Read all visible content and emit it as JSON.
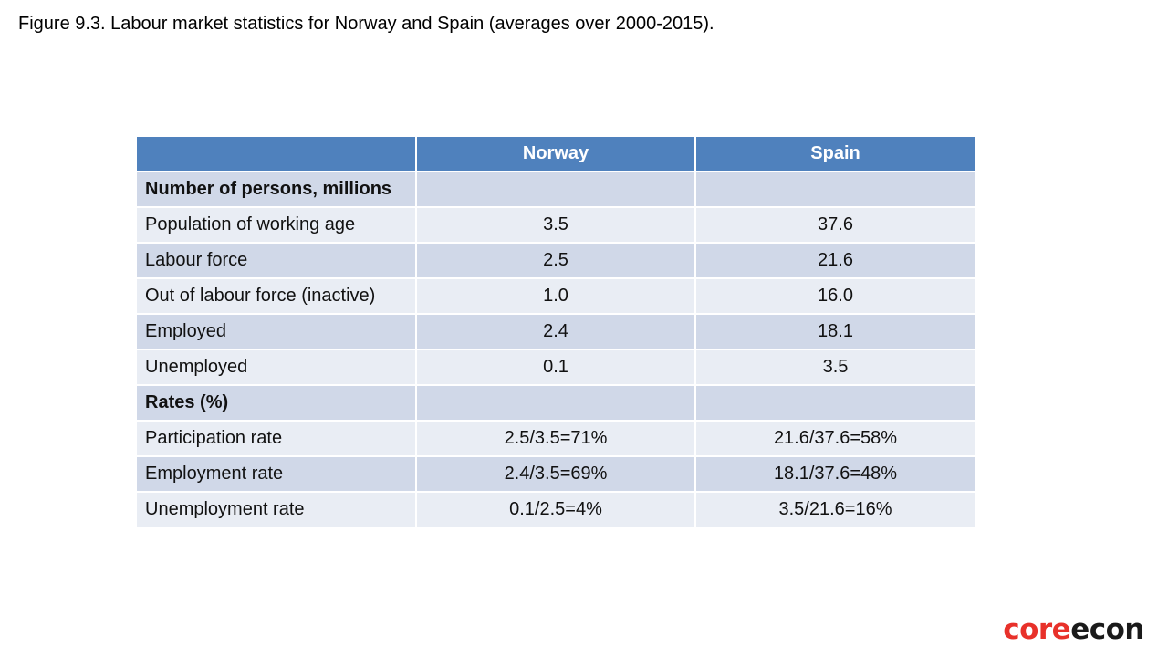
{
  "title": "Figure 9.3. Labour market statistics for Norway and Spain (averages over 2000-2015).",
  "table": {
    "header": [
      "",
      "Norway",
      "Spain"
    ],
    "rows": [
      {
        "label": "Number of persons, millions",
        "norway": "",
        "spain": "",
        "section": true
      },
      {
        "label": "Population of working age",
        "norway": "3.5",
        "spain": "37.6",
        "section": false
      },
      {
        "label": "Labour force",
        "norway": "2.5",
        "spain": "21.6",
        "section": false
      },
      {
        "label": "Out of labour force (inactive)",
        "norway": "1.0",
        "spain": "16.0",
        "section": false
      },
      {
        "label": "Employed",
        "norway": "2.4",
        "spain": "18.1",
        "section": false
      },
      {
        "label": "Unemployed",
        "norway": "0.1",
        "spain": "3.5",
        "section": false
      },
      {
        "label": "Rates (%)",
        "norway": "",
        "spain": "",
        "section": true
      },
      {
        "label": "Participation rate",
        "norway": "2.5/3.5=71%",
        "spain": "21.6/37.6=58%",
        "section": false
      },
      {
        "label": "Employment rate",
        "norway": "2.4/3.5=69%",
        "spain": "18.1/37.6=48%",
        "section": false
      },
      {
        "label": "Unemployment rate",
        "norway": "0.1/2.5=4%",
        "spain": "3.5/21.6=16%",
        "section": false
      }
    ]
  },
  "logo": {
    "part1": "core",
    "part2": "econ"
  },
  "colors": {
    "header_bg": "#4f81bd",
    "row_dark": "#d0d8e8",
    "row_light": "#e9edf4",
    "logo_red": "#e8312a"
  }
}
